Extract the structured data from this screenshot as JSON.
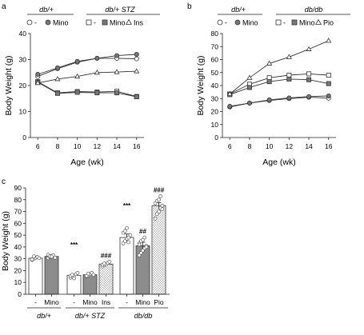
{
  "chart_data": [
    {
      "panel": "a",
      "type": "line",
      "ylabel": "Body Weight  (g)",
      "xlabel": "Age (wk)",
      "ylim": [
        0,
        40
      ],
      "yticks": [
        "0",
        "10",
        "20",
        "30",
        "40"
      ],
      "x": [
        "6",
        "8",
        "10",
        "12",
        "14",
        "16"
      ],
      "legend_groups": [
        {
          "title": "db/+",
          "entries": [
            {
              "marker": "open-circle",
              "label": "-"
            },
            {
              "marker": "gray-circle",
              "label": "Mino"
            }
          ]
        },
        {
          "title": "db/+ STZ",
          "entries": [
            {
              "marker": "open-square",
              "label": "-"
            },
            {
              "marker": "gray-square",
              "label": "Mino"
            },
            {
              "marker": "open-triangle",
              "label": "Ins"
            }
          ]
        }
      ],
      "series": [
        {
          "marker": "open-circle",
          "values": [
            23.5,
            26.5,
            29,
            30.5,
            30.5,
            30.3
          ]
        },
        {
          "marker": "gray-circle",
          "values": [
            24.3,
            26.8,
            29.3,
            30.5,
            31.5,
            32
          ]
        },
        {
          "marker": "open-square",
          "values": [
            21.5,
            17.2,
            17.7,
            17.5,
            17.8,
            15.8
          ]
        },
        {
          "marker": "gray-square",
          "values": [
            21.3,
            17,
            17.4,
            17.2,
            17.2,
            15.7
          ]
        },
        {
          "marker": "open-triangle",
          "values": [
            21,
            22.5,
            23.5,
            25,
            25.2,
            25.5
          ]
        }
      ]
    },
    {
      "panel": "b",
      "type": "line",
      "ylabel": "Body Weight  (g)",
      "xlabel": "Age (wk)",
      "ylim": [
        0,
        80
      ],
      "yticks": [
        "0",
        "10",
        "20",
        "30",
        "40",
        "50",
        "60",
        "70",
        "80"
      ],
      "x": [
        "6",
        "8",
        "10",
        "12",
        "14",
        "16"
      ],
      "legend_groups": [
        {
          "title": "db/+",
          "entries": [
            {
              "marker": "open-circle",
              "label": "-"
            },
            {
              "marker": "gray-circle",
              "label": "Mino"
            }
          ]
        },
        {
          "title": "db/db",
          "entries": [
            {
              "marker": "open-square",
              "label": "-"
            },
            {
              "marker": "gray-square",
              "label": "Mino"
            },
            {
              "marker": "open-triangle",
              "label": "Pio"
            }
          ]
        }
      ],
      "series": [
        {
          "marker": "open-circle",
          "values": [
            23.5,
            26.5,
            28.5,
            30,
            31,
            30.3
          ]
        },
        {
          "marker": "gray-circle",
          "values": [
            24,
            26.5,
            29,
            30.5,
            31.5,
            32
          ]
        },
        {
          "marker": "open-square",
          "values": [
            33.5,
            41,
            46,
            48,
            49,
            48
          ]
        },
        {
          "marker": "gray-square",
          "values": [
            33,
            38.5,
            43,
            45,
            44.5,
            41.5
          ]
        },
        {
          "marker": "open-triangle",
          "values": [
            33.5,
            46,
            57,
            62,
            68,
            74.5
          ]
        }
      ]
    },
    {
      "panel": "c",
      "type": "bar",
      "ylabel": "Body Weight  (g)",
      "ylim": [
        0,
        90
      ],
      "yticks": [
        "0",
        "10",
        "20",
        "30",
        "40",
        "50",
        "60",
        "70",
        "80",
        "90"
      ],
      "categories": [
        "-",
        "Mino",
        "-",
        "Mino",
        "Ins",
        "-",
        "Mino",
        "Pio"
      ],
      "groups": [
        "db/+",
        "db/+ STZ",
        "db/db"
      ],
      "group_index": [
        0,
        0,
        1,
        1,
        1,
        2,
        2,
        2
      ],
      "fills": [
        "white",
        "gray",
        "white",
        "gray",
        "hatched",
        "white",
        "gray",
        "hatched"
      ],
      "values": [
        30.5,
        32,
        16,
        16.5,
        25.5,
        48,
        41,
        75
      ],
      "errors": [
        1,
        1,
        1,
        0.8,
        1,
        3,
        3,
        2.5
      ],
      "points": [
        [
          29,
          30,
          31,
          31.5,
          30.5,
          29.5,
          32
        ],
        [
          30.5,
          31.5,
          32.5,
          33,
          31,
          33.5,
          32,
          31.8
        ],
        [
          14,
          15,
          16,
          17,
          18,
          15.5,
          16.5,
          13.5
        ],
        [
          15,
          16,
          17,
          18,
          16.5,
          15.5,
          17.5
        ],
        [
          23.5,
          24.5,
          25.5,
          26.5,
          27.5,
          25,
          26
        ],
        [
          43,
          45,
          47,
          48,
          50,
          52,
          53.5,
          56,
          44
        ],
        [
          33,
          35,
          37,
          39,
          41,
          43,
          45,
          46,
          48,
          40,
          42
        ],
        [
          64,
          68,
          70,
          73,
          75,
          77,
          79,
          80,
          83,
          72
        ]
      ],
      "annotations": [
        "***",
        "***",
        "###",
        "##",
        "###"
      ],
      "annotation_bar": [
        2,
        5,
        4,
        6,
        7
      ]
    }
  ],
  "panel_labels": [
    "a",
    "b",
    "c"
  ]
}
